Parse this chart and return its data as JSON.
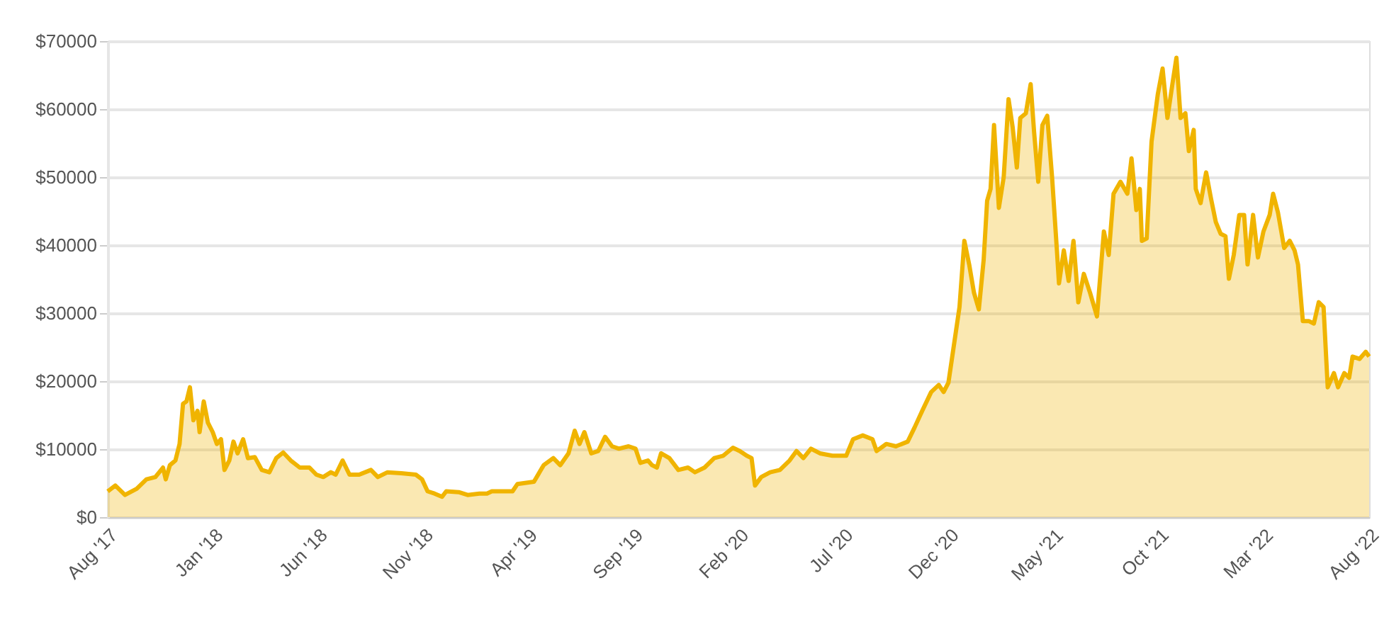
{
  "chart_data": {
    "type": "area",
    "grid": "y",
    "xlim": [
      "2017-08-01",
      "2022-08-01"
    ],
    "xticks": [
      {
        "value": "2017-08-01",
        "label": "Aug '17"
      },
      {
        "value": "2018-01-01",
        "label": "Jan '18"
      },
      {
        "value": "2018-06-01",
        "label": "Jun '18"
      },
      {
        "value": "2018-11-01",
        "label": "Nov '18"
      },
      {
        "value": "2019-04-01",
        "label": "Apr '19"
      },
      {
        "value": "2019-09-01",
        "label": "Sep '19"
      },
      {
        "value": "2020-02-01",
        "label": "Feb '20"
      },
      {
        "value": "2020-07-01",
        "label": "Jul '20"
      },
      {
        "value": "2020-12-01",
        "label": "Dec '20"
      },
      {
        "value": "2021-05-01",
        "label": "May '21"
      },
      {
        "value": "2021-10-01",
        "label": "Oct '21"
      },
      {
        "value": "2022-03-01",
        "label": "Mar '22"
      },
      {
        "value": "2022-08-01",
        "label": "Aug '22"
      }
    ],
    "ylim": [
      0,
      70000
    ],
    "yticks": [
      {
        "value": 0,
        "label": "$0"
      },
      {
        "value": 10000,
        "label": "$10000"
      },
      {
        "value": 20000,
        "label": "$20000"
      },
      {
        "value": 30000,
        "label": "$30000"
      },
      {
        "value": 40000,
        "label": "$40000"
      },
      {
        "value": 50000,
        "label": "$50000"
      },
      {
        "value": 60000,
        "label": "$60000"
      },
      {
        "value": 70000,
        "label": "$70000"
      }
    ],
    "x": [
      "2017-08-01",
      "2017-08-12",
      "2017-08-26",
      "2017-09-12",
      "2017-09-26",
      "2017-10-09",
      "2017-10-20",
      "2017-10-24",
      "2017-10-30",
      "2017-11-07",
      "2017-11-13",
      "2017-11-18",
      "2017-11-23",
      "2017-11-28",
      "2017-12-03",
      "2017-12-09",
      "2017-12-12",
      "2017-12-18",
      "2017-12-24",
      "2017-12-31",
      "2018-01-06",
      "2018-01-12",
      "2018-01-17",
      "2018-01-24",
      "2018-01-30",
      "2018-02-05",
      "2018-02-13",
      "2018-02-20",
      "2018-03-02",
      "2018-03-12",
      "2018-03-23",
      "2018-04-02",
      "2018-04-12",
      "2018-04-23",
      "2018-05-06",
      "2018-05-20",
      "2018-05-30",
      "2018-06-09",
      "2018-06-20",
      "2018-06-27",
      "2018-07-07",
      "2018-07-17",
      "2018-07-31",
      "2018-08-17",
      "2018-08-27",
      "2018-09-10",
      "2018-09-30",
      "2018-10-21",
      "2018-10-30",
      "2018-11-07",
      "2018-11-17",
      "2018-11-28",
      "2018-12-04",
      "2018-12-22",
      "2019-01-04",
      "2019-01-21",
      "2019-02-01",
      "2019-02-08",
      "2019-03-10",
      "2019-03-17",
      "2019-04-10",
      "2019-04-24",
      "2019-05-08",
      "2019-05-18",
      "2019-05-30",
      "2019-06-08",
      "2019-06-15",
      "2019-06-22",
      "2019-07-02",
      "2019-07-12",
      "2019-07-22",
      "2019-08-01",
      "2019-08-11",
      "2019-08-25",
      "2019-09-04",
      "2019-09-11",
      "2019-09-22",
      "2019-09-28",
      "2019-10-05",
      "2019-10-11",
      "2019-10-23",
      "2019-11-05",
      "2019-11-19",
      "2019-11-29",
      "2019-12-13",
      "2019-12-27",
      "2020-01-09",
      "2020-01-23",
      "2020-02-02",
      "2020-02-12",
      "2020-02-19",
      "2020-02-24",
      "2020-03-04",
      "2020-03-17",
      "2020-03-31",
      "2020-04-14",
      "2020-04-24",
      "2020-05-04",
      "2020-05-15",
      "2020-05-28",
      "2020-06-15",
      "2020-07-05",
      "2020-07-15",
      "2020-07-29",
      "2020-08-12",
      "2020-08-18",
      "2020-09-01",
      "2020-09-15",
      "2020-10-02",
      "2020-10-12",
      "2020-10-23",
      "2020-11-05",
      "2020-11-16",
      "2020-11-23",
      "2020-11-30",
      "2020-12-06",
      "2020-12-16",
      "2020-12-23",
      "2020-12-30",
      "2021-01-06",
      "2021-01-13",
      "2021-01-20",
      "2021-01-25",
      "2021-01-30",
      "2021-02-04",
      "2021-02-11",
      "2021-02-18",
      "2021-02-25",
      "2021-03-03",
      "2021-03-09",
      "2021-03-14",
      "2021-03-22",
      "2021-03-29",
      "2021-04-03",
      "2021-04-09",
      "2021-04-15",
      "2021-04-22",
      "2021-04-29",
      "2021-05-06",
      "2021-05-09",
      "2021-05-16",
      "2021-05-23",
      "2021-05-30",
      "2021-06-06",
      "2021-06-14",
      "2021-06-23",
      "2021-07-03",
      "2021-07-13",
      "2021-07-20",
      "2021-07-27",
      "2021-08-06",
      "2021-08-16",
      "2021-08-22",
      "2021-08-29",
      "2021-09-03",
      "2021-09-06",
      "2021-09-13",
      "2021-09-20",
      "2021-09-29",
      "2021-10-06",
      "2021-10-13",
      "2021-10-20",
      "2021-10-26",
      "2021-11-01",
      "2021-11-08",
      "2021-11-13",
      "2021-11-20",
      "2021-11-23",
      "2021-11-30",
      "2021-12-08",
      "2021-12-15",
      "2021-12-22",
      "2021-12-29",
      "2022-01-05",
      "2022-01-10",
      "2022-01-17",
      "2022-01-25",
      "2022-02-01",
      "2022-02-06",
      "2022-02-14",
      "2022-02-21",
      "2022-03-01",
      "2022-03-10",
      "2022-03-15",
      "2022-03-22",
      "2022-03-31",
      "2022-04-08",
      "2022-04-15",
      "2022-04-20",
      "2022-04-27",
      "2022-05-06",
      "2022-05-13",
      "2022-05-20",
      "2022-05-27",
      "2022-06-02",
      "2022-06-11",
      "2022-06-17",
      "2022-06-26",
      "2022-07-03",
      "2022-07-08",
      "2022-07-18",
      "2022-07-27",
      "2022-08-01"
    ],
    "series": [
      {
        "color": "#f0b400",
        "values": [
          3800,
          4650,
          3260,
          4170,
          5560,
          5900,
          7290,
          5560,
          7640,
          8330,
          10760,
          16670,
          17020,
          19100,
          14240,
          15630,
          12500,
          17020,
          13890,
          12500,
          10760,
          11460,
          6940,
          8330,
          11110,
          9380,
          11460,
          8680,
          8820,
          6940,
          6600,
          8680,
          9510,
          8330,
          7290,
          7290,
          6250,
          5900,
          6600,
          6250,
          8330,
          6250,
          6250,
          6940,
          5900,
          6600,
          6460,
          6250,
          5560,
          3800,
          3470,
          3000,
          3800,
          3680,
          3260,
          3470,
          3470,
          3800,
          3800,
          4860,
          5210,
          7640,
          8680,
          7640,
          9380,
          12710,
          10760,
          12500,
          9380,
          9720,
          11810,
          10420,
          10070,
          10420,
          10070,
          7980,
          8330,
          7640,
          7290,
          9380,
          8680,
          6940,
          7290,
          6600,
          7290,
          8680,
          9030,
          10210,
          9720,
          9030,
          8680,
          4650,
          5900,
          6600,
          6940,
          8330,
          9720,
          8680,
          10070,
          9380,
          9030,
          9030,
          11460,
          12020,
          11460,
          9720,
          10760,
          10420,
          11110,
          13190,
          15630,
          18400,
          19440,
          18400,
          19790,
          23960,
          30900,
          40630,
          37150,
          32980,
          30560,
          37850,
          46520,
          48270,
          57650,
          45480,
          50000,
          61460,
          57290,
          51400,
          58690,
          59380,
          63680,
          56600,
          49310,
          57650,
          59020,
          50000,
          39230,
          34380,
          39230,
          34730,
          40630,
          31600,
          35770,
          32980,
          29520,
          42010,
          38540,
          47560,
          49310,
          47560,
          52770,
          45150,
          48270,
          40630,
          40980,
          55210,
          62150,
          65970,
          58690,
          63540,
          67560,
          58690,
          59380,
          53820,
          56940,
          48270,
          46180,
          50690,
          46880,
          43400,
          41670,
          41320,
          35060,
          38540,
          44440,
          44440,
          37150,
          44440,
          38190,
          42010,
          44440,
          47560,
          44790,
          39580,
          40630,
          39230,
          37150,
          28820,
          28820,
          28470,
          31600,
          30900,
          19100,
          21180,
          19100,
          21180,
          20490,
          23610,
          23260,
          24310,
          23610
        ]
      }
    ]
  }
}
